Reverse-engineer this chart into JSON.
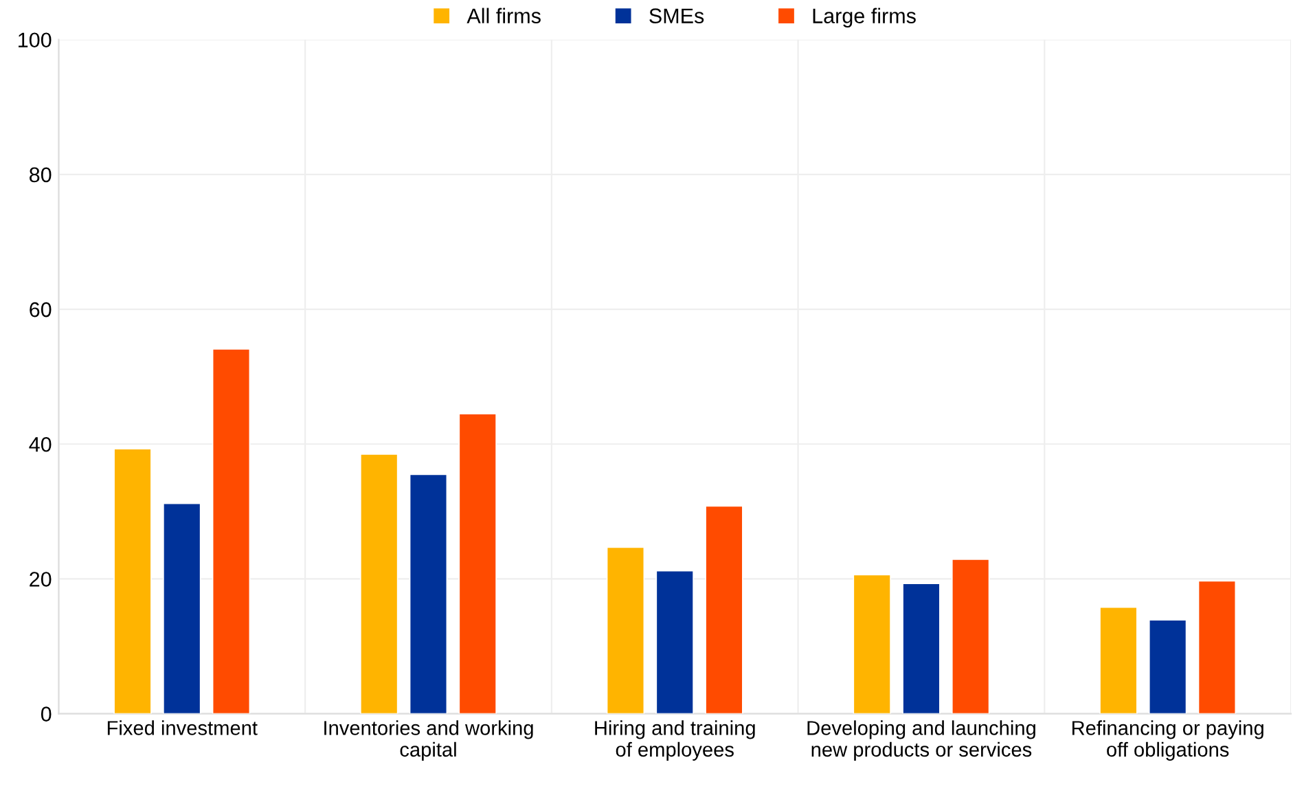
{
  "chart_data": {
    "type": "bar",
    "categories": [
      "Fixed investment",
      "Inventories and working\ncapital",
      "Hiring and training\nof employees",
      "Developing and launching\nnew products or services",
      "Refinancing or paying\noff obligations"
    ],
    "series": [
      {
        "name": "All firms",
        "color": "#ffb400",
        "values": [
          39.3,
          38.5,
          24.7,
          20.6,
          15.8
        ]
      },
      {
        "name": "SMEs",
        "color": "#003299",
        "values": [
          31.2,
          35.5,
          21.2,
          19.3,
          13.9
        ]
      },
      {
        "name": "Large firms",
        "color": "#ff4b00",
        "values": [
          54.1,
          44.5,
          30.8,
          22.9,
          19.7
        ]
      }
    ],
    "ylim": [
      0,
      100
    ],
    "yticks": [
      0,
      20,
      40,
      60,
      80,
      100
    ],
    "grid": true,
    "legend": "top"
  }
}
